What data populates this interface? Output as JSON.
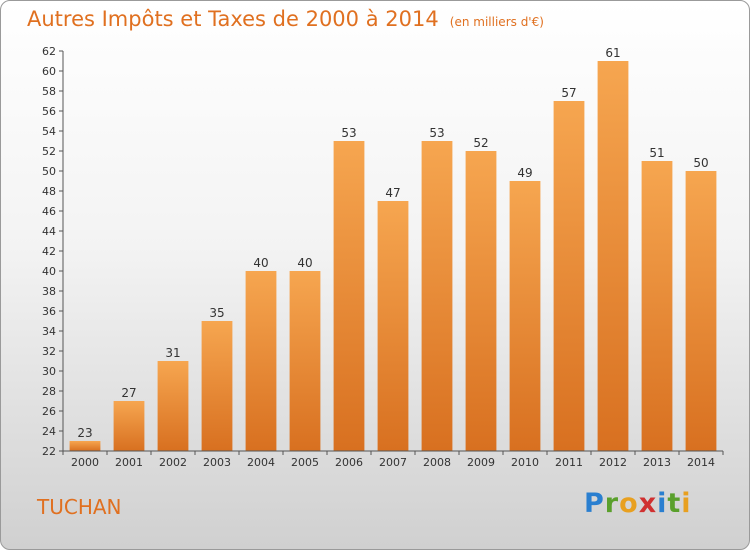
{
  "header": {
    "title": "Autres Impôts et Taxes de 2000 à 2014",
    "subtitle": "(en milliers d'€)"
  },
  "footer": {
    "town": "TUCHAN"
  },
  "logo": {
    "letters": [
      {
        "char": "P",
        "color": "#2a7fd0"
      },
      {
        "char": "r",
        "color": "#5aa02c"
      },
      {
        "char": "o",
        "color": "#e8a020"
      },
      {
        "char": "x",
        "color": "#d03030"
      },
      {
        "char": "i",
        "color": "#2a7fd0"
      },
      {
        "char": "t",
        "color": "#5aa02c"
      },
      {
        "char": "i",
        "color": "#e8a020"
      }
    ]
  },
  "colors": {
    "bar_light": "#f6a650",
    "bar_dark": "#d87020",
    "accent": "#e07020"
  },
  "chart_data": {
    "type": "bar",
    "categories": [
      "2000",
      "2001",
      "2002",
      "2003",
      "2004",
      "2005",
      "2006",
      "2007",
      "2008",
      "2009",
      "2010",
      "2011",
      "2012",
      "2013",
      "2014"
    ],
    "values": [
      23,
      27,
      31,
      35,
      40,
      40,
      53,
      47,
      53,
      52,
      49,
      57,
      61,
      51,
      50
    ],
    "ylim": [
      22,
      62
    ],
    "ytick_step": 2,
    "grid": false,
    "data_labels": true
  }
}
